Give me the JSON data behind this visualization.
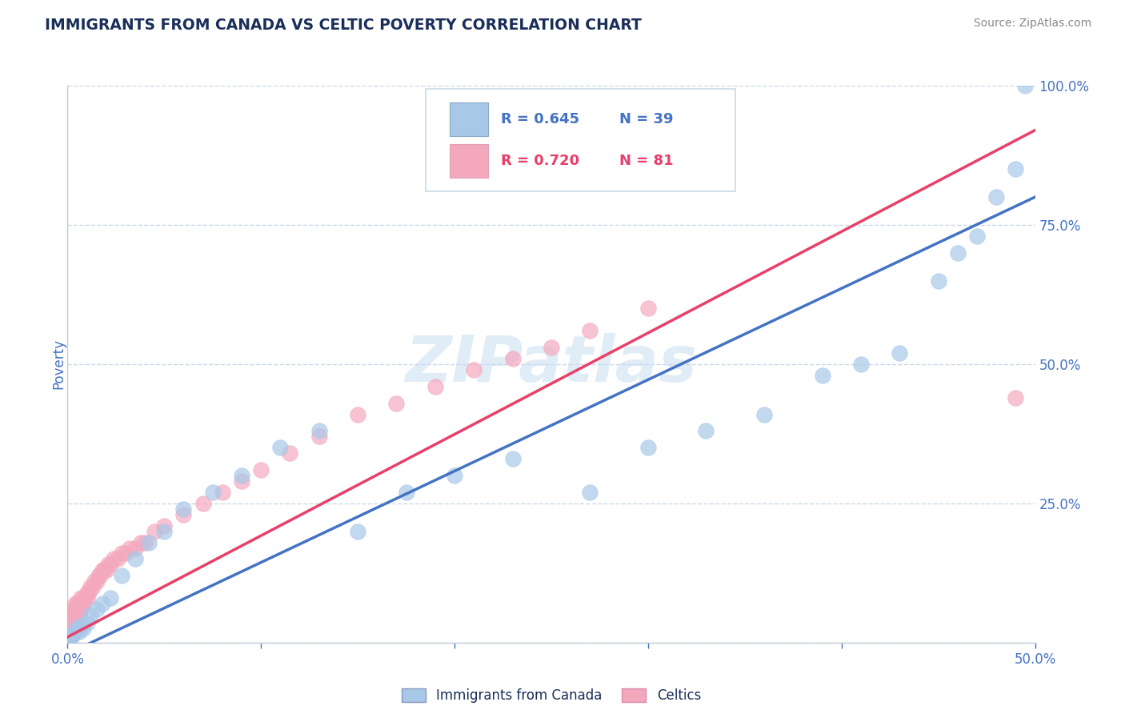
{
  "title": "IMMIGRANTS FROM CANADA VS CELTIC POVERTY CORRELATION CHART",
  "source": "Source: ZipAtlas.com",
  "ylabel": "Poverty",
  "xlim": [
    0.0,
    0.5
  ],
  "ylim": [
    0.0,
    1.0
  ],
  "xticks": [
    0.0,
    0.1,
    0.2,
    0.3,
    0.4,
    0.5
  ],
  "xticklabels": [
    "0.0%",
    "",
    "",
    "",
    "",
    "50.0%"
  ],
  "yticks_right": [
    0.0,
    0.25,
    0.5,
    0.75,
    1.0
  ],
  "yticklabels_right": [
    "",
    "25.0%",
    "50.0%",
    "75.0%",
    "100.0%"
  ],
  "watermark": "ZIPatlas",
  "legend_blue_label": "Immigrants from Canada",
  "legend_pink_label": "Celtics",
  "r_blue": "R = 0.645",
  "n_blue": "N = 39",
  "r_pink": "R = 0.720",
  "n_pink": "N = 81",
  "blue_color": "#a8c8e8",
  "pink_color": "#f4a8be",
  "blue_line_color": "#4472c4",
  "pink_line_color": "#e8406a",
  "title_color": "#1a2e5a",
  "tick_color": "#4472c4",
  "grid_color": "#c8d8e8",
  "background_color": "#ffffff",
  "blue_scatter_x": [
    0.001,
    0.002,
    0.003,
    0.004,
    0.005,
    0.006,
    0.007,
    0.008,
    0.01,
    0.012,
    0.015,
    0.018,
    0.022,
    0.028,
    0.035,
    0.042,
    0.05,
    0.06,
    0.075,
    0.09,
    0.11,
    0.13,
    0.15,
    0.175,
    0.2,
    0.23,
    0.27,
    0.3,
    0.33,
    0.36,
    0.39,
    0.41,
    0.43,
    0.45,
    0.46,
    0.47,
    0.48,
    0.49,
    0.495
  ],
  "blue_scatter_y": [
    0.005,
    0.01,
    0.015,
    0.02,
    0.025,
    0.02,
    0.03,
    0.025,
    0.035,
    0.05,
    0.06,
    0.07,
    0.08,
    0.12,
    0.15,
    0.18,
    0.2,
    0.24,
    0.27,
    0.3,
    0.35,
    0.38,
    0.2,
    0.27,
    0.3,
    0.33,
    0.27,
    0.35,
    0.38,
    0.41,
    0.48,
    0.5,
    0.52,
    0.65,
    0.7,
    0.73,
    0.8,
    0.85,
    1.0
  ],
  "pink_scatter_x": [
    0.001,
    0.001,
    0.001,
    0.001,
    0.001,
    0.001,
    0.001,
    0.001,
    0.002,
    0.002,
    0.002,
    0.002,
    0.002,
    0.002,
    0.002,
    0.002,
    0.003,
    0.003,
    0.003,
    0.003,
    0.003,
    0.003,
    0.003,
    0.004,
    0.004,
    0.004,
    0.004,
    0.004,
    0.005,
    0.005,
    0.005,
    0.005,
    0.006,
    0.006,
    0.006,
    0.007,
    0.007,
    0.007,
    0.008,
    0.008,
    0.009,
    0.01,
    0.01,
    0.011,
    0.012,
    0.013,
    0.014,
    0.015,
    0.016,
    0.017,
    0.018,
    0.019,
    0.02,
    0.021,
    0.022,
    0.024,
    0.026,
    0.028,
    0.03,
    0.032,
    0.035,
    0.038,
    0.04,
    0.045,
    0.05,
    0.06,
    0.07,
    0.08,
    0.09,
    0.1,
    0.115,
    0.13,
    0.15,
    0.17,
    0.19,
    0.21,
    0.23,
    0.25,
    0.27,
    0.3,
    0.49
  ],
  "pink_scatter_y": [
    0.01,
    0.015,
    0.02,
    0.025,
    0.03,
    0.035,
    0.04,
    0.045,
    0.015,
    0.02,
    0.025,
    0.03,
    0.035,
    0.04,
    0.045,
    0.05,
    0.02,
    0.025,
    0.03,
    0.035,
    0.04,
    0.05,
    0.06,
    0.03,
    0.04,
    0.05,
    0.06,
    0.07,
    0.04,
    0.05,
    0.06,
    0.07,
    0.05,
    0.06,
    0.07,
    0.06,
    0.07,
    0.08,
    0.07,
    0.08,
    0.08,
    0.08,
    0.09,
    0.09,
    0.1,
    0.1,
    0.11,
    0.11,
    0.12,
    0.12,
    0.13,
    0.13,
    0.13,
    0.14,
    0.14,
    0.15,
    0.15,
    0.16,
    0.16,
    0.17,
    0.17,
    0.18,
    0.18,
    0.2,
    0.21,
    0.23,
    0.25,
    0.27,
    0.29,
    0.31,
    0.34,
    0.37,
    0.41,
    0.43,
    0.46,
    0.49,
    0.51,
    0.53,
    0.56,
    0.6,
    0.44
  ],
  "blue_line_x0": 0.0,
  "blue_line_x1": 0.5,
  "blue_line_y0": -0.02,
  "blue_line_y1": 0.8,
  "pink_line_x0": 0.0,
  "pink_line_x1": 0.5,
  "pink_line_y0": 0.01,
  "pink_line_y1": 0.92
}
